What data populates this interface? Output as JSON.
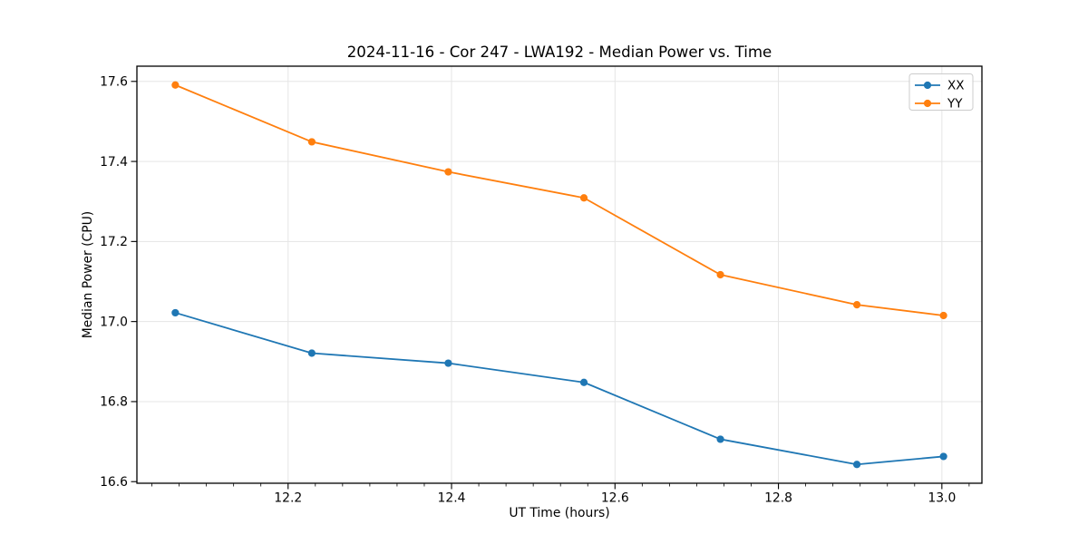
{
  "chart_data": {
    "type": "line",
    "title": "2024-11-16 - Cor 247 - LWA192 - Median Power vs. Time",
    "xlabel": "UT Time (hours)",
    "ylabel": "Median Power (CPU)",
    "x": [
      12.062,
      12.229,
      12.396,
      12.562,
      12.729,
      12.896,
      13.002
    ],
    "series": [
      {
        "name": "XX",
        "color": "#1f77b4",
        "values": [
          17.022,
          16.921,
          16.896,
          16.848,
          16.706,
          16.643,
          16.663
        ]
      },
      {
        "name": "YY",
        "color": "#ff7f0e",
        "values": [
          17.591,
          17.449,
          17.374,
          17.309,
          17.117,
          17.042,
          17.015
        ]
      }
    ],
    "xlim": [
      12.015,
      13.049
    ],
    "ylim": [
      16.596,
      17.638
    ],
    "xticks": [
      12.2,
      12.4,
      12.6,
      12.8,
      13.0
    ],
    "yticks": [
      16.6,
      16.8,
      17.0,
      17.2,
      17.4,
      17.6
    ],
    "x_minor_base": 12.2,
    "x_minor_step": 0.0333333,
    "x_minor_per_major": 6,
    "grid": true,
    "legend_position": "upper right",
    "background_color": "#ffffff",
    "grid_color": "#e5e5e5",
    "spine_color": "#000000",
    "tick_color": "#000000",
    "legend_border_color": "#cccccc"
  }
}
